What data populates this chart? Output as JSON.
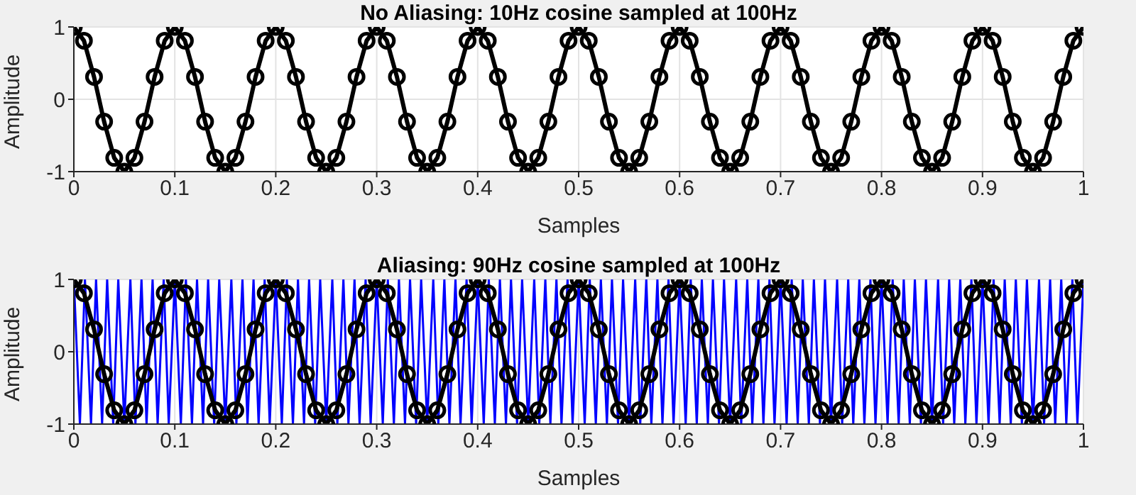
{
  "chart_data": [
    {
      "type": "line",
      "title": "No Aliasing: 10Hz cosine sampled at 100Hz",
      "xlabel": "Samples",
      "ylabel": "Amplitude",
      "xlim": [
        0,
        1
      ],
      "xticks": [
        0,
        0.1,
        0.2,
        0.3,
        0.4,
        0.5,
        0.6,
        0.7,
        0.8,
        0.9,
        1
      ],
      "ylim": [
        -1,
        1
      ],
      "yticks": [
        -1,
        0,
        1
      ],
      "grid": true,
      "series": [
        {
          "color": "#000000",
          "marker": "circle",
          "x": [
            0,
            0.01,
            0.02,
            0.03,
            0.04,
            0.05,
            0.06,
            0.07,
            0.08,
            0.09,
            0.1,
            0.11,
            0.12,
            0.13,
            0.14,
            0.15,
            0.16,
            0.17,
            0.18,
            0.19,
            0.2,
            0.21,
            0.22,
            0.23,
            0.24,
            0.25,
            0.26,
            0.27,
            0.28,
            0.29,
            0.3,
            0.31,
            0.32,
            0.33,
            0.34,
            0.35,
            0.36,
            0.37,
            0.38,
            0.39,
            0.4,
            0.41,
            0.42,
            0.43,
            0.44,
            0.45,
            0.46,
            0.47,
            0.48,
            0.49,
            0.5,
            0.51,
            0.52,
            0.53,
            0.54,
            0.55,
            0.56,
            0.57,
            0.58,
            0.59,
            0.6,
            0.61,
            0.62,
            0.63,
            0.64,
            0.65,
            0.66,
            0.67,
            0.68,
            0.69,
            0.7,
            0.71,
            0.72,
            0.73,
            0.74,
            0.75,
            0.76,
            0.77,
            0.78,
            0.79,
            0.8,
            0.81,
            0.82,
            0.83,
            0.84,
            0.85,
            0.86,
            0.87,
            0.88,
            0.89,
            0.9,
            0.91,
            0.92,
            0.93,
            0.94,
            0.95,
            0.96,
            0.97,
            0.98,
            0.99,
            1
          ],
          "values": [
            1,
            0.81,
            0.31,
            -0.31,
            -0.81,
            -1,
            -0.81,
            -0.31,
            0.31,
            0.81,
            1,
            0.81,
            0.31,
            -0.31,
            -0.81,
            -1,
            -0.81,
            -0.31,
            0.31,
            0.81,
            1,
            0.81,
            0.31,
            -0.31,
            -0.81,
            -1,
            -0.81,
            -0.31,
            0.31,
            0.81,
            1,
            0.81,
            0.31,
            -0.31,
            -0.81,
            -1,
            -0.81,
            -0.31,
            0.31,
            0.81,
            1,
            0.81,
            0.31,
            -0.31,
            -0.81,
            -1,
            -0.81,
            -0.31,
            0.31,
            0.81,
            1,
            0.81,
            0.31,
            -0.31,
            -0.81,
            -1,
            -0.81,
            -0.31,
            0.31,
            0.81,
            1,
            0.81,
            0.31,
            -0.31,
            -0.81,
            -1,
            -0.81,
            -0.31,
            0.31,
            0.81,
            1,
            0.81,
            0.31,
            -0.31,
            -0.81,
            -1,
            -0.81,
            -0.31,
            0.31,
            0.81,
            1,
            0.81,
            0.31,
            -0.31,
            -0.81,
            -1,
            -0.81,
            -0.31,
            0.31,
            0.81,
            1,
            0.81,
            0.31,
            -0.31,
            -0.81,
            -1,
            -0.81,
            -0.31,
            0.31,
            0.81,
            1
          ]
        }
      ]
    },
    {
      "type": "line",
      "title": "Aliasing: 90Hz cosine sampled at 100Hz",
      "xlabel": "Samples",
      "ylabel": "Amplitude",
      "xlim": [
        0,
        1
      ],
      "xticks": [
        0,
        0.1,
        0.2,
        0.3,
        0.4,
        0.5,
        0.6,
        0.7,
        0.8,
        0.9,
        1
      ],
      "ylim": [
        -1,
        1
      ],
      "yticks": [
        -1,
        0,
        1
      ],
      "grid": true,
      "series": [
        {
          "color": "#0000ff",
          "marker": "none",
          "x": [
            0,
            0.006,
            0.011,
            0.017,
            0.022,
            0.028,
            0.033,
            0.039,
            0.044,
            0.05,
            0.056,
            0.061,
            0.067,
            0.072,
            0.078,
            0.083,
            0.089,
            0.094,
            0.1,
            0.106,
            0.111,
            0.117,
            0.122,
            0.128,
            0.133,
            0.139,
            0.144,
            0.15,
            0.156,
            0.161,
            0.167,
            0.172,
            0.178,
            0.183,
            0.189,
            0.194,
            0.2,
            0.206,
            0.211,
            0.217,
            0.222,
            0.228,
            0.233,
            0.239,
            0.244,
            0.25,
            0.256,
            0.261,
            0.267,
            0.272,
            0.278,
            0.283,
            0.289,
            0.294,
            0.3,
            0.306,
            0.311,
            0.317,
            0.322,
            0.328,
            0.333,
            0.339,
            0.344,
            0.35,
            0.356,
            0.361,
            0.367,
            0.372,
            0.378,
            0.383,
            0.389,
            0.394,
            0.4,
            0.406,
            0.411,
            0.417,
            0.422,
            0.428,
            0.433,
            0.439,
            0.444,
            0.45,
            0.456,
            0.461,
            0.467,
            0.472,
            0.478,
            0.483,
            0.489,
            0.494,
            0.5,
            0.506,
            0.511,
            0.517,
            0.522,
            0.528,
            0.533,
            0.539,
            0.544,
            0.55,
            0.556,
            0.561,
            0.567,
            0.572,
            0.578,
            0.583,
            0.589,
            0.594,
            0.6,
            0.606,
            0.611,
            0.617,
            0.622,
            0.628,
            0.633,
            0.639,
            0.644,
            0.65,
            0.656,
            0.661,
            0.667,
            0.672,
            0.678,
            0.683,
            0.689,
            0.694,
            0.7,
            0.706,
            0.711,
            0.717,
            0.722,
            0.728,
            0.733,
            0.739,
            0.744,
            0.75,
            0.756,
            0.761,
            0.767,
            0.772,
            0.778,
            0.783,
            0.789,
            0.794,
            0.8,
            0.806,
            0.811,
            0.817,
            0.822,
            0.828,
            0.833,
            0.839,
            0.844,
            0.85,
            0.856,
            0.861,
            0.867,
            0.872,
            0.878,
            0.883,
            0.889,
            0.894,
            0.9,
            0.906,
            0.911,
            0.917,
            0.922,
            0.928,
            0.933,
            0.939,
            0.944,
            0.95,
            0.956,
            0.961,
            0.967,
            0.972,
            0.978,
            0.983,
            0.989,
            0.994,
            1
          ],
          "values": [
            1,
            -1,
            1,
            -1,
            1,
            -1,
            1,
            -1,
            1,
            -1,
            1,
            -1,
            1,
            -1,
            1,
            -1,
            1,
            -1,
            1,
            -1,
            1,
            -1,
            1,
            -1,
            1,
            -1,
            1,
            -1,
            1,
            -1,
            1,
            -1,
            1,
            -1,
            1,
            -1,
            1,
            -1,
            1,
            -1,
            1,
            -1,
            1,
            -1,
            1,
            -1,
            1,
            -1,
            1,
            -1,
            1,
            -1,
            1,
            -1,
            1,
            -1,
            1,
            -1,
            1,
            -1,
            1,
            -1,
            1,
            -1,
            1,
            -1,
            1,
            -1,
            1,
            -1,
            1,
            -1,
            1,
            -1,
            1,
            -1,
            1,
            -1,
            1,
            -1,
            1,
            -1,
            1,
            -1,
            1,
            -1,
            1,
            -1,
            1,
            -1,
            1,
            -1,
            1,
            -1,
            1,
            -1,
            1,
            -1,
            1,
            -1,
            1,
            -1,
            1,
            -1,
            1,
            -1,
            1,
            -1,
            1,
            -1,
            1,
            -1,
            1,
            -1,
            1,
            -1,
            1,
            -1,
            1,
            -1,
            1,
            -1,
            1,
            -1,
            1,
            -1,
            1,
            -1,
            1,
            -1,
            1,
            -1,
            1,
            -1,
            1,
            -1,
            1,
            -1,
            1,
            -1,
            1,
            -1,
            1,
            -1,
            1,
            -1,
            1,
            -1,
            1,
            -1,
            1,
            -1,
            1,
            -1,
            1,
            -1,
            1,
            -1,
            1,
            -1,
            1,
            -1,
            1,
            -1,
            1,
            -1,
            1,
            -1,
            1,
            -1,
            1,
            -1,
            1,
            -1,
            1,
            -1,
            1,
            -1,
            1,
            -1,
            1
          ]
        },
        {
          "color": "#000000",
          "marker": "circle",
          "x": [
            0,
            0.01,
            0.02,
            0.03,
            0.04,
            0.05,
            0.06,
            0.07,
            0.08,
            0.09,
            0.1,
            0.11,
            0.12,
            0.13,
            0.14,
            0.15,
            0.16,
            0.17,
            0.18,
            0.19,
            0.2,
            0.21,
            0.22,
            0.23,
            0.24,
            0.25,
            0.26,
            0.27,
            0.28,
            0.29,
            0.3,
            0.31,
            0.32,
            0.33,
            0.34,
            0.35,
            0.36,
            0.37,
            0.38,
            0.39,
            0.4,
            0.41,
            0.42,
            0.43,
            0.44,
            0.45,
            0.46,
            0.47,
            0.48,
            0.49,
            0.5,
            0.51,
            0.52,
            0.53,
            0.54,
            0.55,
            0.56,
            0.57,
            0.58,
            0.59,
            0.6,
            0.61,
            0.62,
            0.63,
            0.64,
            0.65,
            0.66,
            0.67,
            0.68,
            0.69,
            0.7,
            0.71,
            0.72,
            0.73,
            0.74,
            0.75,
            0.76,
            0.77,
            0.78,
            0.79,
            0.8,
            0.81,
            0.82,
            0.83,
            0.84,
            0.85,
            0.86,
            0.87,
            0.88,
            0.89,
            0.9,
            0.91,
            0.92,
            0.93,
            0.94,
            0.95,
            0.96,
            0.97,
            0.98,
            0.99,
            1
          ],
          "values": [
            1,
            0.81,
            0.31,
            -0.31,
            -0.81,
            -1,
            -0.81,
            -0.31,
            0.31,
            0.81,
            1,
            0.81,
            0.31,
            -0.31,
            -0.81,
            -1,
            -0.81,
            -0.31,
            0.31,
            0.81,
            1,
            0.81,
            0.31,
            -0.31,
            -0.81,
            -1,
            -0.81,
            -0.31,
            0.31,
            0.81,
            1,
            0.81,
            0.31,
            -0.31,
            -0.81,
            -1,
            -0.81,
            -0.31,
            0.31,
            0.81,
            1,
            0.81,
            0.31,
            -0.31,
            -0.81,
            -1,
            -0.81,
            -0.31,
            0.31,
            0.81,
            1,
            0.81,
            0.31,
            -0.31,
            -0.81,
            -1,
            -0.81,
            -0.31,
            0.31,
            0.81,
            1,
            0.81,
            0.31,
            -0.31,
            -0.81,
            -1,
            -0.81,
            -0.31,
            0.31,
            0.81,
            1,
            0.81,
            0.31,
            -0.31,
            -0.81,
            -1,
            -0.81,
            -0.31,
            0.31,
            0.81,
            1,
            0.81,
            0.31,
            -0.31,
            -0.81,
            -1,
            -0.81,
            -0.31,
            0.31,
            0.81,
            1,
            0.81,
            0.31,
            -0.31,
            -0.81,
            -1,
            -0.81,
            -0.31,
            0.31,
            0.81,
            1
          ]
        }
      ]
    }
  ]
}
